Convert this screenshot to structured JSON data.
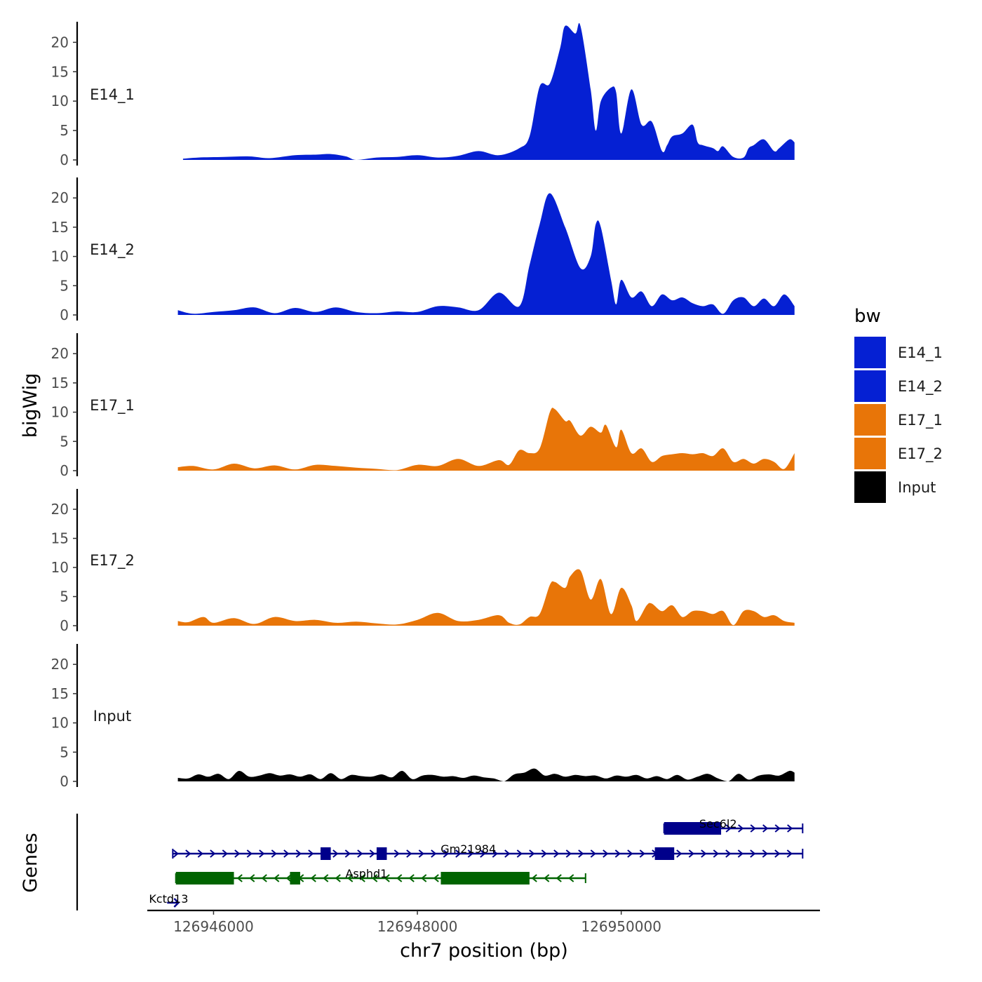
{
  "chart_data": {
    "type": "area",
    "title": "",
    "ylabel": "bigWig",
    "genes_label": "Genes",
    "xlabel": "chr7 position (bp)",
    "xlim": [
      126945350,
      126951950
    ],
    "ylim": [
      0,
      23.5
    ],
    "yticks": [
      0,
      5,
      10,
      15,
      20
    ],
    "xticks": [
      126946000,
      126948000,
      126950000
    ],
    "xtick_labels": [
      "126946000",
      "126948000",
      "126950000"
    ],
    "legend": {
      "title": "bw",
      "position": "right",
      "entries": [
        {
          "label": "E14_1",
          "color": "#0520d3"
        },
        {
          "label": "E14_2",
          "color": "#0520d3"
        },
        {
          "label": "E17_1",
          "color": "#e87508"
        },
        {
          "label": "E17_2",
          "color": "#e87508"
        },
        {
          "label": "Input",
          "color": "#000000"
        }
      ]
    },
    "tracks": [
      {
        "name": "E14_1",
        "color": "#0520d3",
        "x": [
          126945700,
          126945850,
          126946100,
          126946350,
          126946550,
          126946800,
          126947000,
          126947150,
          126947300,
          126947400,
          126947600,
          126947800,
          126948000,
          126948200,
          126948400,
          126948600,
          126948800,
          126949000,
          126949100,
          126949200,
          126949300,
          126949400,
          126949450,
          126949550,
          126949600,
          126949700,
          126949750,
          126949800,
          126949900,
          126949950,
          126950000,
          126950100,
          126950200,
          126950300,
          126950400,
          126950450,
          126950500,
          126950600,
          126950700,
          126950750,
          126950800,
          126950900,
          126950950,
          126951000,
          126951100,
          126951200,
          126951250,
          126951300,
          126951400,
          126951500,
          126951550,
          126951650,
          126951700
        ],
        "values": [
          0.2,
          0.4,
          0.5,
          0.6,
          0.3,
          0.8,
          0.9,
          1.0,
          0.6,
          0.0,
          0.4,
          0.5,
          0.8,
          0.4,
          0.7,
          1.5,
          0.8,
          2.0,
          4.0,
          12.5,
          13.0,
          19.0,
          22.8,
          21.5,
          22.8,
          12.0,
          5.0,
          10.0,
          12.3,
          11.5,
          4.5,
          12.0,
          6.0,
          6.5,
          1.5,
          2.5,
          4.0,
          4.5,
          6.0,
          3.0,
          2.5,
          2.0,
          1.5,
          2.3,
          0.5,
          0.4,
          2.0,
          2.5,
          3.5,
          1.5,
          2.0,
          3.5,
          3.0
        ]
      },
      {
        "name": "E14_2",
        "color": "#0520d3",
        "x": [
          126945650,
          126945800,
          126946000,
          126946200,
          126946400,
          126946600,
          126946800,
          126947000,
          126947200,
          126947400,
          126947600,
          126947800,
          126948000,
          126948200,
          126948400,
          126948600,
          126948800,
          126949000,
          126949100,
          126949200,
          126949300,
          126949450,
          126949600,
          126949700,
          126949750,
          126949800,
          126949900,
          126949950,
          126950000,
          126950100,
          126950200,
          126950300,
          126950400,
          126950500,
          126950600,
          126950700,
          126950800,
          126950900,
          126951000,
          126951100,
          126951200,
          126951300,
          126951400,
          126951500,
          126951600,
          126951700
        ],
        "values": [
          0.8,
          0.2,
          0.5,
          0.8,
          1.3,
          0.3,
          1.2,
          0.5,
          1.3,
          0.5,
          0.3,
          0.6,
          0.5,
          1.5,
          1.3,
          0.8,
          3.8,
          1.5,
          8.5,
          15.5,
          20.8,
          15.0,
          8.0,
          10.0,
          15.5,
          15.0,
          6.0,
          1.8,
          6.0,
          3.0,
          4.0,
          1.5,
          3.5,
          2.5,
          3.0,
          2.0,
          1.5,
          1.8,
          0.2,
          2.5,
          3.0,
          1.5,
          2.8,
          1.5,
          3.5,
          1.5
        ]
      },
      {
        "name": "E17_1",
        "color": "#e87508",
        "x": [
          126945650,
          126945800,
          126946000,
          126946200,
          126946400,
          126946600,
          126946800,
          126947000,
          126947200,
          126947400,
          126947600,
          126947800,
          126948000,
          126948200,
          126948400,
          126948600,
          126948800,
          126948900,
          126949000,
          126949100,
          126949200,
          126949300,
          126949350,
          126949450,
          126949500,
          126949600,
          126949700,
          126949800,
          126949850,
          126949950,
          126950000,
          126950100,
          126950200,
          126950300,
          126950400,
          126950500,
          126950600,
          126950700,
          126950800,
          126950900,
          126951000,
          126951100,
          126951200,
          126951300,
          126951400,
          126951500,
          126951600,
          126951700
        ],
        "values": [
          0.6,
          0.8,
          0.2,
          1.2,
          0.4,
          0.9,
          0.2,
          1.0,
          0.8,
          0.5,
          0.3,
          0.1,
          1.0,
          0.8,
          2.0,
          0.8,
          1.8,
          1.0,
          3.5,
          3.0,
          3.8,
          10.0,
          10.5,
          8.5,
          8.5,
          6.0,
          7.5,
          6.5,
          7.8,
          4.0,
          7.0,
          3.0,
          3.8,
          1.5,
          2.5,
          2.8,
          3.0,
          2.8,
          3.0,
          2.5,
          3.8,
          1.5,
          2.0,
          1.2,
          2.0,
          1.5,
          0.3,
          3.0
        ]
      },
      {
        "name": "E17_2",
        "color": "#e87508",
        "x": [
          126945650,
          126945750,
          126945900,
          126946000,
          126946200,
          126946400,
          126946600,
          126946800,
          126947000,
          126947200,
          126947400,
          126947600,
          126947800,
          126948000,
          126948200,
          126948400,
          126948600,
          126948800,
          126948900,
          126949000,
          126949100,
          126949200,
          126949300,
          126949350,
          126949450,
          126949500,
          126949600,
          126949700,
          126949800,
          126949900,
          126950000,
          126950100,
          126950150,
          126950250,
          126950300,
          126950400,
          126950500,
          126950600,
          126950700,
          126950800,
          126950900,
          126951000,
          126951100,
          126951200,
          126951300,
          126951400,
          126951500,
          126951600,
          126951700
        ],
        "values": [
          0.8,
          0.6,
          1.5,
          0.5,
          1.3,
          0.3,
          1.5,
          0.8,
          1.0,
          0.5,
          0.7,
          0.4,
          0.2,
          1.0,
          2.2,
          0.8,
          1.0,
          1.8,
          0.5,
          0.2,
          1.5,
          2.0,
          7.0,
          7.5,
          6.5,
          8.5,
          9.5,
          4.5,
          8.0,
          2.0,
          6.5,
          3.5,
          0.8,
          3.5,
          3.8,
          2.5,
          3.5,
          1.5,
          2.5,
          2.5,
          2.0,
          2.5,
          0.1,
          2.5,
          2.5,
          1.5,
          1.8,
          0.8,
          0.5
        ]
      },
      {
        "name": "Input",
        "color": "#000000",
        "x": [
          126945650,
          126945750,
          126945850,
          126945950,
          126946050,
          126946150,
          126946250,
          126946350,
          126946450,
          126946550,
          126946650,
          126946750,
          126946850,
          126946950,
          126947050,
          126947150,
          126947250,
          126947350,
          126947450,
          126947550,
          126947650,
          126947750,
          126947850,
          126947950,
          126948050,
          126948150,
          126948250,
          126948350,
          126948450,
          126948550,
          126948650,
          126948750,
          126948850,
          126948950,
          126949050,
          126949150,
          126949250,
          126949350,
          126949450,
          126949550,
          126949650,
          126949750,
          126949850,
          126949950,
          126950050,
          126950150,
          126950250,
          126950350,
          126950450,
          126950550,
          126950650,
          126950750,
          126950850,
          126950950,
          126951050,
          126951150,
          126951250,
          126951350,
          126951450,
          126951550,
          126951650,
          126951700
        ],
        "values": [
          0.6,
          0.5,
          1.2,
          0.8,
          1.3,
          0.4,
          1.8,
          0.8,
          1.0,
          1.4,
          1.0,
          1.2,
          0.8,
          1.2,
          0.4,
          1.4,
          0.4,
          1.1,
          0.9,
          0.8,
          1.2,
          0.7,
          1.8,
          0.4,
          1.0,
          1.1,
          0.8,
          0.9,
          0.6,
          1.0,
          0.7,
          0.5,
          0.0,
          1.2,
          1.5,
          2.2,
          1.0,
          1.3,
          0.8,
          1.1,
          0.9,
          1.0,
          0.5,
          1.0,
          0.8,
          1.1,
          0.5,
          0.9,
          0.4,
          1.1,
          0.3,
          0.8,
          1.3,
          0.5,
          0.0,
          1.3,
          0.3,
          1.0,
          1.2,
          1.0,
          1.8,
          1.5
        ]
      }
    ],
    "genes": [
      {
        "name": "Sec6l2",
        "strand": "+",
        "color": "#00008b",
        "row": 1,
        "start": 126950420,
        "end": 126951780,
        "exons": [
          [
            126950420,
            126950980
          ]
        ],
        "label_pos": 126950950
      },
      {
        "name": "Gm21984",
        "strand": "+",
        "color": "#00008b",
        "row": 2,
        "start": 126945600,
        "end": 126951780,
        "exons": [
          [
            126947050,
            126947150
          ],
          [
            126947600,
            126947700
          ],
          [
            126950330,
            126950520
          ]
        ],
        "label_pos": 126948500
      },
      {
        "name": "Asphd1",
        "strand": "-",
        "color": "#006400",
        "row": 3,
        "start": 126945630,
        "end": 126949650,
        "exons": [
          [
            126945630,
            126946200
          ],
          [
            126946750,
            126946850
          ],
          [
            126948230,
            126949100
          ]
        ],
        "label_pos": 126947500
      },
      {
        "name": "Kctd13",
        "strand": "+",
        "color": "#00008b",
        "row": 4,
        "start": 126945600,
        "end": 126945700,
        "exons": [],
        "label_pos": 126945600
      }
    ]
  }
}
